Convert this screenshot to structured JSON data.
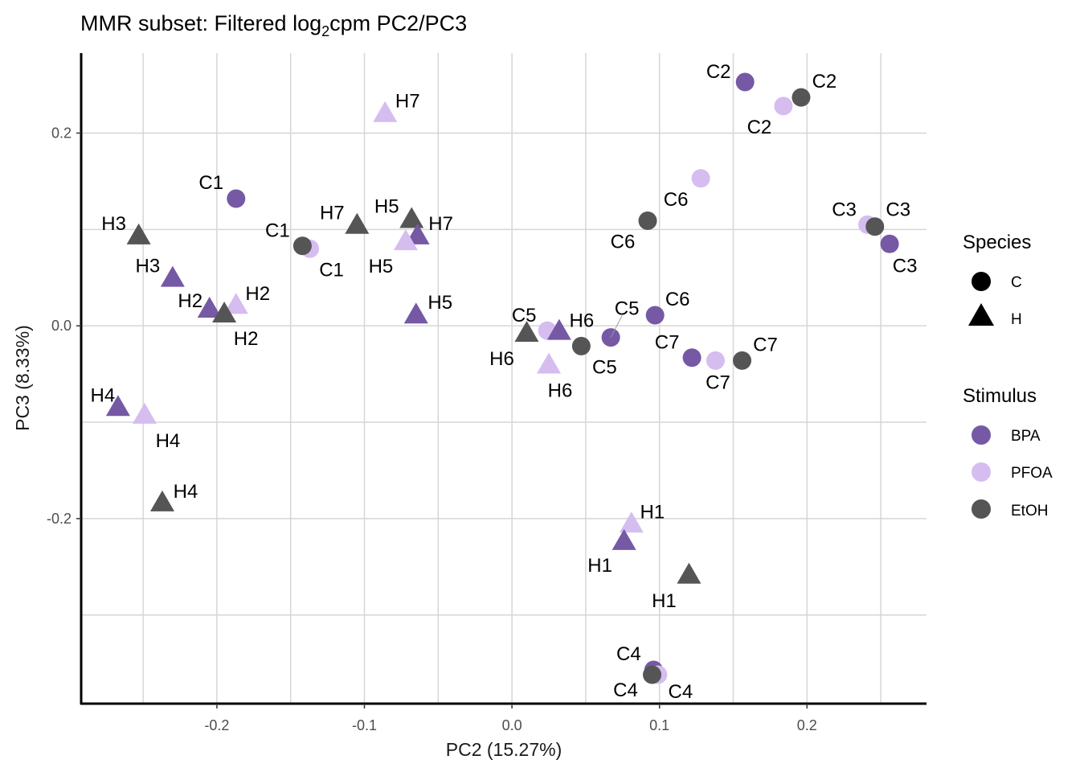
{
  "chart_data": {
    "type": "scatter",
    "title_main": "MMR subset: Filtered log",
    "title_sub": "2",
    "title_tail": "cpm PC2/PC3",
    "xlabel": "PC2 (15.27%)",
    "ylabel": "PC3 (8.33%)",
    "xlim": [
      -0.292,
      0.281
    ],
    "ylim": [
      -0.392,
      0.283
    ],
    "xticks": [
      -0.2,
      -0.1,
      0.0,
      0.1,
      0.2
    ],
    "xtick_labels": [
      "-0.2",
      "-0.1",
      "0.0",
      "0.1",
      "0.2"
    ],
    "yticks": [
      0.2,
      0.0,
      -0.2
    ],
    "ytick_labels": [
      "0.2",
      "0.0",
      "-0.2"
    ],
    "grid": true,
    "legend_position": "right",
    "legend": {
      "species_title": "Species",
      "species": [
        {
          "name": "C",
          "shape": "circle"
        },
        {
          "name": "H",
          "shape": "triangle"
        }
      ],
      "stimulus_title": "Stimulus",
      "stimulus": [
        {
          "name": "BPA",
          "color": "#7559a5"
        },
        {
          "name": "PFOA",
          "color": "#d5bdf0"
        },
        {
          "name": "EtOH",
          "color": "#555555"
        }
      ]
    },
    "points": [
      {
        "label": "C2",
        "species": "C",
        "stimulus": "BPA",
        "x": 0.158,
        "y": 0.253
      },
      {
        "label": "C2",
        "species": "C",
        "stimulus": "PFOA",
        "x": 0.184,
        "y": 0.228
      },
      {
        "label": "C2",
        "species": "C",
        "stimulus": "EtOH",
        "x": 0.196,
        "y": 0.237
      },
      {
        "label": "C6",
        "species": "C",
        "stimulus": "PFOA",
        "x": 0.128,
        "y": 0.153
      },
      {
        "label": "C6",
        "species": "C",
        "stimulus": "EtOH",
        "x": 0.092,
        "y": 0.109
      },
      {
        "label": "C3",
        "species": "C",
        "stimulus": "PFOA",
        "x": 0.241,
        "y": 0.105
      },
      {
        "label": "C3",
        "species": "C",
        "stimulus": "EtOH",
        "x": 0.246,
        "y": 0.103
      },
      {
        "label": "C3",
        "species": "C",
        "stimulus": "BPA",
        "x": 0.256,
        "y": 0.085
      },
      {
        "label": "C1",
        "species": "C",
        "stimulus": "BPA",
        "x": -0.187,
        "y": 0.132
      },
      {
        "label": "C1",
        "species": "C",
        "stimulus": "PFOA",
        "x": -0.137,
        "y": 0.08
      },
      {
        "label": "C1",
        "species": "C",
        "stimulus": "EtOH",
        "x": -0.142,
        "y": 0.083
      },
      {
        "label": "C6",
        "species": "C",
        "stimulus": "BPA",
        "x": 0.097,
        "y": 0.011
      },
      {
        "label": "C5",
        "species": "C",
        "stimulus": "BPA",
        "x": 0.067,
        "y": -0.012
      },
      {
        "label": "C5",
        "species": "C",
        "stimulus": "PFOA",
        "x": 0.024,
        "y": -0.005
      },
      {
        "label": "C5",
        "species": "C",
        "stimulus": "EtOH",
        "x": 0.047,
        "y": -0.021
      },
      {
        "label": "C7",
        "species": "C",
        "stimulus": "BPA",
        "x": 0.122,
        "y": -0.033
      },
      {
        "label": "C7",
        "species": "C",
        "stimulus": "PFOA",
        "x": 0.138,
        "y": -0.036
      },
      {
        "label": "C7",
        "species": "C",
        "stimulus": "EtOH",
        "x": 0.156,
        "y": -0.036
      },
      {
        "label": "C4",
        "species": "C",
        "stimulus": "BPA",
        "x": 0.096,
        "y": -0.357
      },
      {
        "label": "C4",
        "species": "C",
        "stimulus": "PFOA",
        "x": 0.099,
        "y": -0.362
      },
      {
        "label": "C4",
        "species": "C",
        "stimulus": "EtOH",
        "x": 0.095,
        "y": -0.362
      },
      {
        "label": "H7",
        "species": "H",
        "stimulus": "PFOA",
        "x": -0.086,
        "y": 0.219
      },
      {
        "label": "H7",
        "species": "H",
        "stimulus": "EtOH",
        "x": -0.105,
        "y": 0.103
      },
      {
        "label": "H5",
        "species": "H",
        "stimulus": "EtOH",
        "x": -0.068,
        "y": 0.109
      },
      {
        "label": "H7",
        "species": "H",
        "stimulus": "BPA",
        "x": -0.064,
        "y": 0.092
      },
      {
        "label": "H5",
        "species": "H",
        "stimulus": "PFOA",
        "x": -0.072,
        "y": 0.086
      },
      {
        "label": "H5",
        "species": "H",
        "stimulus": "BPA",
        "x": -0.065,
        "y": 0.01
      },
      {
        "label": "H3",
        "species": "H",
        "stimulus": "EtOH",
        "x": -0.253,
        "y": 0.092
      },
      {
        "label": "H3",
        "species": "H",
        "stimulus": "BPA",
        "x": -0.23,
        "y": 0.048
      },
      {
        "label": "H2",
        "species": "H",
        "stimulus": "BPA",
        "x": -0.205,
        "y": 0.016
      },
      {
        "label": "H2",
        "species": "H",
        "stimulus": "PFOA",
        "x": -0.187,
        "y": 0.02
      },
      {
        "label": "H2",
        "species": "H",
        "stimulus": "EtOH",
        "x": -0.195,
        "y": 0.011
      },
      {
        "label": "H4",
        "species": "H",
        "stimulus": "BPA",
        "x": -0.267,
        "y": -0.086
      },
      {
        "label": "H4",
        "species": "H",
        "stimulus": "PFOA",
        "x": -0.249,
        "y": -0.094
      },
      {
        "label": "H4",
        "species": "H",
        "stimulus": "EtOH",
        "x": -0.237,
        "y": -0.185
      },
      {
        "label": "H6",
        "species": "H",
        "stimulus": "EtOH",
        "x": 0.01,
        "y": -0.009
      },
      {
        "label": "H6",
        "species": "H",
        "stimulus": "BPA",
        "x": 0.032,
        "y": -0.007
      },
      {
        "label": "H6",
        "species": "H",
        "stimulus": "PFOA",
        "x": 0.025,
        "y": -0.042
      },
      {
        "label": "H1",
        "species": "H",
        "stimulus": "PFOA",
        "x": 0.081,
        "y": -0.207
      },
      {
        "label": "H1",
        "species": "H",
        "stimulus": "BPA",
        "x": 0.076,
        "y": -0.225
      },
      {
        "label": "H1",
        "species": "H",
        "stimulus": "EtOH",
        "x": 0.12,
        "y": -0.26
      }
    ]
  }
}
